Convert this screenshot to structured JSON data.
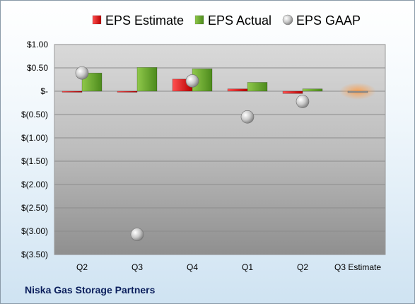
{
  "company": "Niska Gas Storage Partners",
  "colors": {
    "estimate": "#e31c1c",
    "actual": "#6ea82c",
    "gaap": "#b8b8b8",
    "q3_estimate_highlight": "#f5b87a"
  },
  "chart_data": {
    "type": "bar",
    "categories": [
      "Q2",
      "Q3",
      "Q4",
      "Q1",
      "Q2",
      "Q3 Estimate"
    ],
    "series": [
      {
        "name": "EPS Estimate",
        "type": "bar",
        "values": [
          -0.01,
          -0.02,
          0.26,
          0.05,
          -0.05,
          -0.03
        ]
      },
      {
        "name": "EPS Actual",
        "type": "bar",
        "values": [
          0.39,
          0.51,
          0.48,
          0.19,
          0.05,
          null
        ]
      },
      {
        "name": "EPS GAAP",
        "type": "scatter",
        "values": [
          0.39,
          -3.07,
          0.22,
          -0.55,
          -0.22,
          null
        ]
      }
    ],
    "ylim": [
      -3.5,
      1.0
    ],
    "yticks": [
      1.0,
      0.5,
      0.0,
      -0.5,
      -1.0,
      -1.5,
      -2.0,
      -2.5,
      -3.0,
      -3.5
    ],
    "ytick_labels": [
      "$1.00",
      "$0.50",
      "$-",
      "$(0.50)",
      "$(1.00)",
      "$(1.50)",
      "$(2.00)",
      "$(2.50)",
      "$(3.00)",
      "$(3.50)"
    ],
    "legend_position": "top",
    "grid": true
  }
}
